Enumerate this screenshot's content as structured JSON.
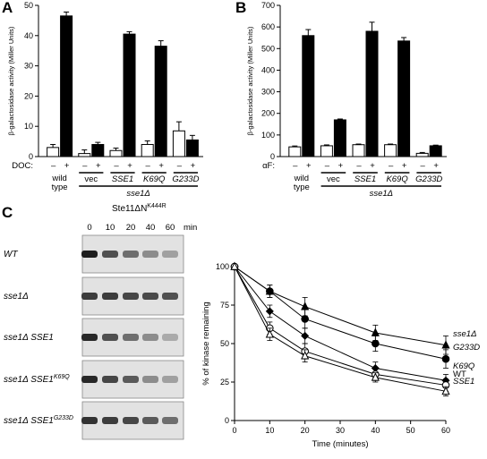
{
  "panels": {
    "a": "A",
    "b": "B",
    "c": "C"
  },
  "chart_data": [
    {
      "type": "bar",
      "panel": "A",
      "ylabel": "β-galactosidase activity (Miller Units)",
      "ylim": [
        0,
        50
      ],
      "yticks": [
        0,
        10,
        20,
        30,
        40,
        50
      ],
      "treatment_label": "DOC:",
      "sign_labels": [
        "–",
        "+"
      ],
      "groups": [
        {
          "label": "wild type",
          "values": [
            3,
            46.5
          ],
          "errors": [
            1,
            1.3
          ]
        },
        {
          "label": "vec",
          "values": [
            1,
            4
          ],
          "errors": [
            1.2,
            0.7
          ]
        },
        {
          "label": "SSE1",
          "values": [
            2,
            40.5
          ],
          "errors": [
            0.8,
            0.8
          ]
        },
        {
          "label": "K69Q",
          "values": [
            4,
            36.5
          ],
          "errors": [
            1.2,
            1.8
          ]
        },
        {
          "label": "G233D",
          "values": [
            8.5,
            5.5
          ],
          "errors": [
            3,
            1.5
          ]
        }
      ],
      "strain_label": "sse1Δ",
      "series": [
        {
          "values": [
            3,
            1,
            2,
            4,
            8.5
          ]
        },
        {
          "values": [
            46.5,
            4,
            40.5,
            36.5,
            5.5
          ]
        }
      ],
      "colors": [
        "#ffffff",
        "#000000"
      ]
    },
    {
      "type": "bar",
      "panel": "B",
      "ylabel": "β-galactosidase activity (Miller Units)",
      "ylim": [
        0,
        700
      ],
      "yticks": [
        0,
        100,
        200,
        300,
        400,
        500,
        600,
        700
      ],
      "treatment_label": "αF:",
      "sign_labels": [
        "–",
        "+"
      ],
      "groups": [
        {
          "label": "wild type",
          "values": [
            45,
            560
          ],
          "errors": [
            4,
            28
          ]
        },
        {
          "label": "vec",
          "values": [
            50,
            170
          ],
          "errors": [
            4,
            4
          ]
        },
        {
          "label": "SSE1",
          "values": [
            55,
            580
          ],
          "errors": [
            3,
            42
          ]
        },
        {
          "label": "K69Q",
          "values": [
            55,
            535
          ],
          "errors": [
            3,
            16
          ]
        },
        {
          "label": "G233D",
          "values": [
            15,
            50
          ],
          "errors": [
            4,
            3
          ]
        }
      ],
      "strain_label": "sse1Δ",
      "series": [
        {
          "values": [
            45,
            50,
            55,
            55,
            15
          ]
        },
        {
          "values": [
            560,
            170,
            580,
            535,
            50
          ]
        }
      ],
      "colors": [
        "#ffffff",
        "#000000"
      ]
    },
    {
      "type": "line",
      "panel": "C",
      "xlabel": "Time (minutes)",
      "ylabel": "% of kinase remaining",
      "xlim": [
        0,
        60
      ],
      "ylim": [
        0,
        100
      ],
      "xticks": [
        0,
        10,
        20,
        30,
        40,
        50,
        60
      ],
      "yticks": [
        0,
        25,
        50,
        75,
        100
      ],
      "x": [
        0,
        10,
        20,
        40,
        60
      ],
      "series": [
        {
          "name": "sse1Δ",
          "marker": "triangle-filled",
          "values": [
            100,
            84,
            74,
            57,
            49
          ],
          "errors": [
            2,
            4,
            6,
            5,
            6
          ]
        },
        {
          "name": "G233D",
          "marker": "circle-filled",
          "values": [
            100,
            84,
            66,
            50,
            40
          ],
          "errors": [
            2,
            4,
            6,
            5,
            6
          ]
        },
        {
          "name": "K69Q",
          "marker": "diamond-filled",
          "values": [
            100,
            71,
            55,
            34,
            26
          ],
          "errors": [
            2,
            4,
            5,
            4,
            4
          ]
        },
        {
          "name": "WT",
          "marker": "circle-open",
          "values": [
            100,
            60,
            45,
            30,
            23
          ],
          "errors": [
            2,
            4,
            5,
            4,
            4
          ]
        },
        {
          "name": "SSE1",
          "marker": "triangle-open",
          "values": [
            100,
            56,
            42,
            28,
            19
          ],
          "errors": [
            2,
            4,
            4,
            3,
            3
          ]
        }
      ]
    }
  ],
  "blot": {
    "title_main": "Ste11ΔN",
    "title_sup": "K444R",
    "timepoints": [
      "0",
      "10",
      "20",
      "40",
      "60"
    ],
    "time_unit": "min",
    "rows": [
      {
        "label": "WT",
        "label_sup": "",
        "intensities": [
          1.0,
          0.75,
          0.6,
          0.45,
          0.35
        ]
      },
      {
        "label": "sse1Δ",
        "label_sup": "",
        "intensities": [
          0.85,
          0.85,
          0.8,
          0.78,
          0.75
        ]
      },
      {
        "label": "sse1Δ SSE1",
        "label_sup": "",
        "intensities": [
          0.95,
          0.75,
          0.6,
          0.45,
          0.3
        ]
      },
      {
        "label": "sse1Δ SSE1",
        "label_sup": "K69Q",
        "intensities": [
          0.95,
          0.8,
          0.7,
          0.45,
          0.35
        ]
      },
      {
        "label": "sse1Δ SSE1",
        "label_sup": "G233D",
        "intensities": [
          0.9,
          0.85,
          0.8,
          0.7,
          0.6
        ]
      }
    ]
  }
}
